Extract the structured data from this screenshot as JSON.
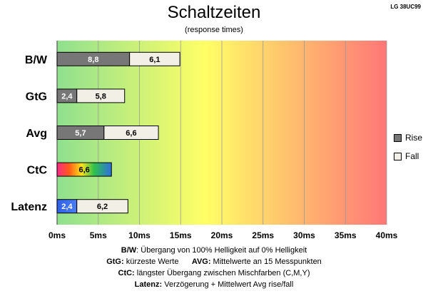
{
  "header": {
    "title": "Schaltzeiten",
    "subtitle": "(response times)",
    "model": "LG 38UC99"
  },
  "legend": {
    "rise_label": "Rise",
    "fall_label": "Fall",
    "rise_color": "#777777",
    "fall_color": "#f2f0e6"
  },
  "footer": {
    "line1_key": "B/W",
    "line1_text": ":  Übergang von 100% Helligkeit auf 0% Helligkeit",
    "line2_key_a": "GtG:",
    "line2_text_a": " kürzeste  Werte",
    "line2_key_b": "AVG:",
    "line2_text_b": " Mittelwerte  an 15 Messpunkten",
    "line3_key": "CtC:",
    "line3_text": " längster Übergang  zwischen Mischfarben  (C,M,Y)",
    "line4_key": "Latenz:",
    "line4_text": " Verzögerung  + Mittelwert  Avg rise/fall"
  },
  "chart_data": {
    "type": "bar",
    "orientation": "horizontal",
    "stacked": true,
    "categories": [
      "B/W",
      "GtG",
      "Avg",
      "CtC",
      "Latenz"
    ],
    "series": [
      {
        "name": "Rise",
        "values": [
          8.8,
          2.4,
          5.7,
          6.6,
          2.4
        ],
        "labels": [
          "8,8",
          "2,4",
          "5,7",
          "6,6",
          "2,4"
        ]
      },
      {
        "name": "Fall",
        "values": [
          6.1,
          5.8,
          6.6,
          null,
          6.2
        ],
        "labels": [
          "6,1",
          "5,8",
          "6,6",
          "",
          "6,2"
        ]
      }
    ],
    "x_ticks": [
      "0ms",
      "5ms",
      "10ms",
      "15ms",
      "20ms",
      "25ms",
      "30ms",
      "35ms",
      "40ms"
    ],
    "xlim": [
      0,
      40
    ],
    "background_gradient": [
      "#8fe08f",
      "#ffff66",
      "#ff7777"
    ],
    "grid": true,
    "legend_position": "right"
  }
}
